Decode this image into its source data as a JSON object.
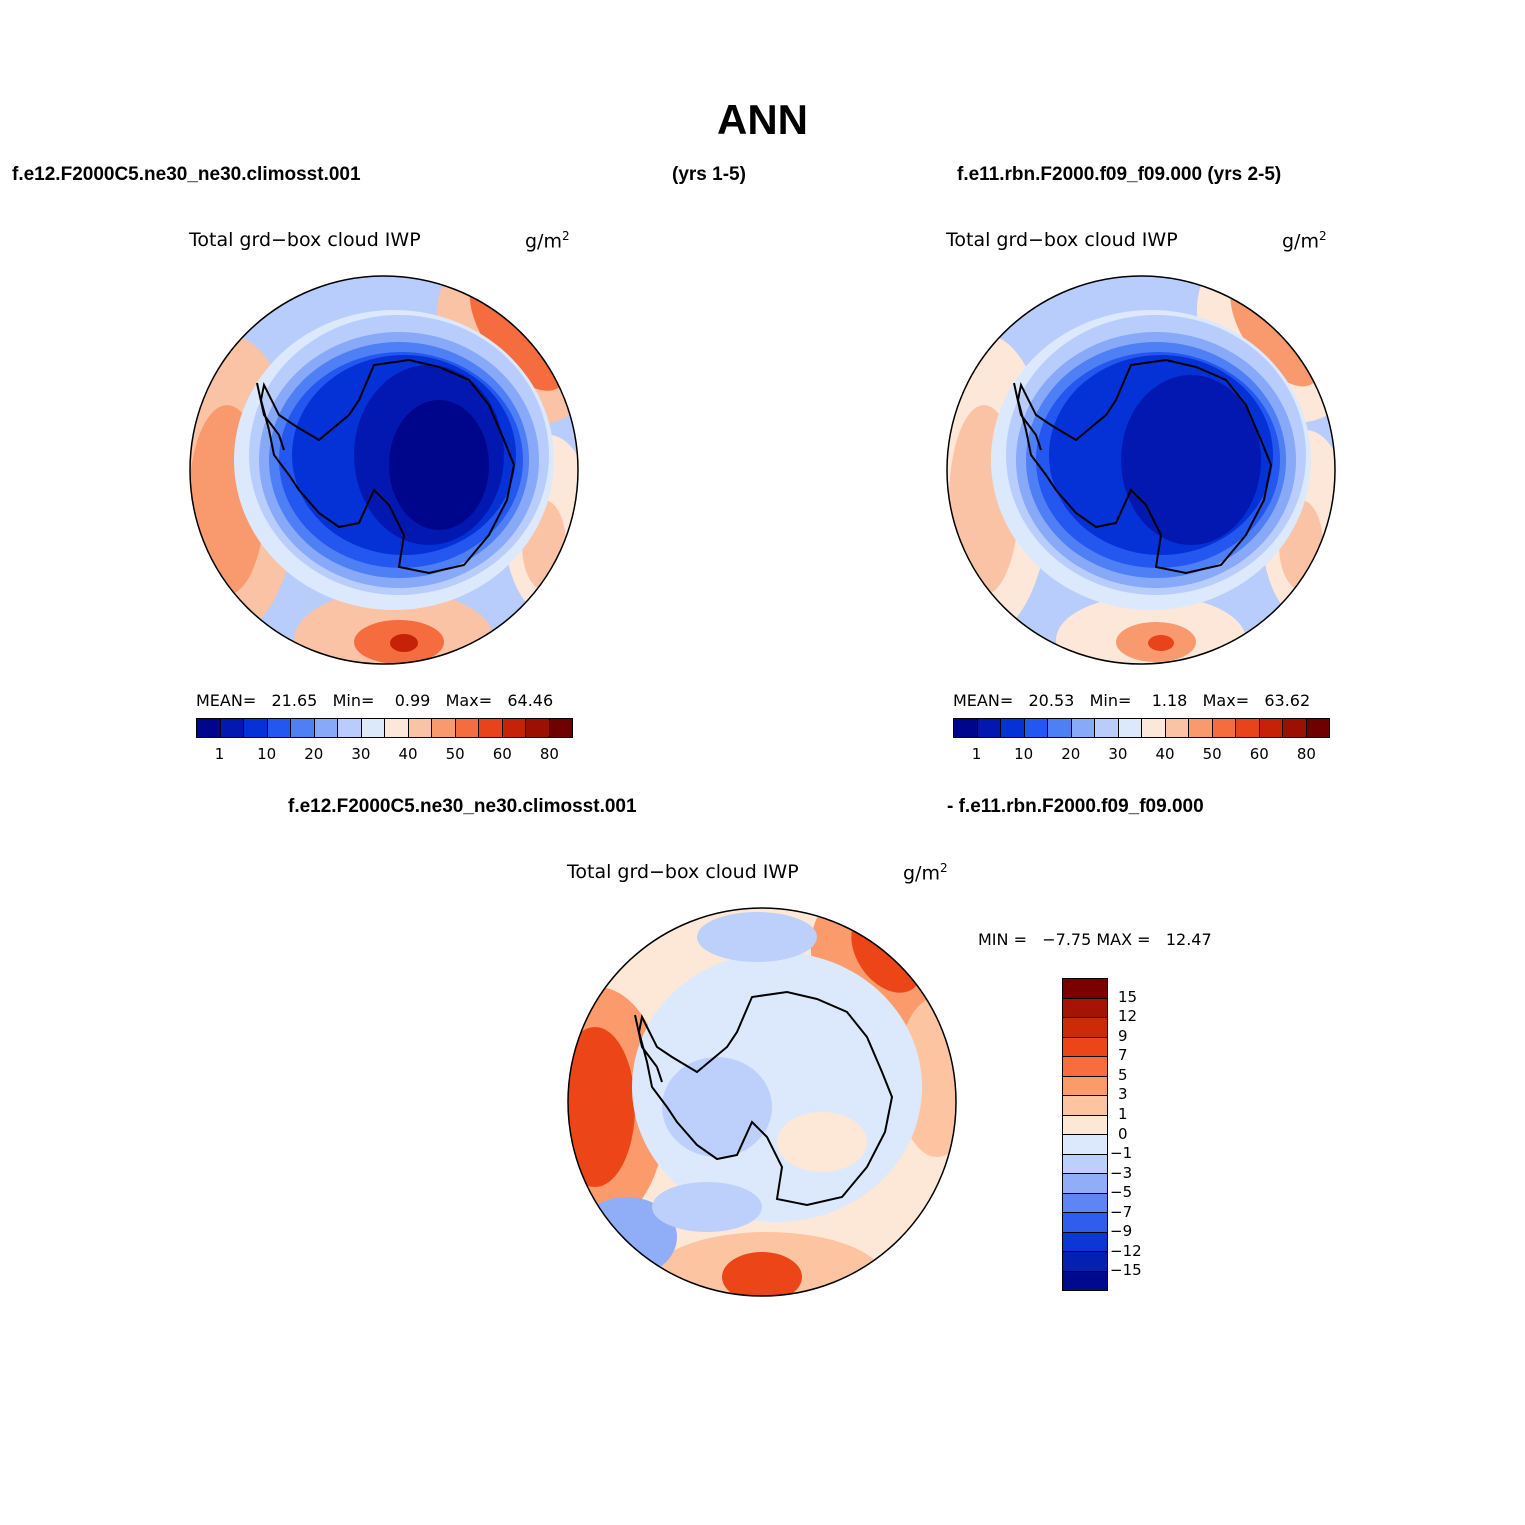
{
  "title": "ANN",
  "header": {
    "case1": "f.e12.F2000C5.ne30_ne30.climosst.001",
    "case1_years": "(yrs 1-5)",
    "case2": "f.e11.rbn.F2000.f09_f09.000 (yrs 2-5)"
  },
  "diff_header": {
    "case1": "f.e12.F2000C5.ne30_ne30.climosst.001",
    "case2": "- f.e11.rbn.F2000.f09_f09.000"
  },
  "variable": "Total grd−box cloud IWP",
  "units_base": "g/m",
  "units_sup": "2",
  "panel1": {
    "mean_label": "MEAN=",
    "mean": "21.65",
    "min_label": "Min=",
    "min": "0.99",
    "max_label": "Max=",
    "max": "64.46"
  },
  "panel2": {
    "mean_label": "MEAN=",
    "mean": "20.53",
    "min_label": "Min=",
    "min": "1.18",
    "max_label": "Max=",
    "max": "63.62"
  },
  "panel3": {
    "min_label": "MIN =",
    "min": "−7.75",
    "max_label": "MAX =",
    "max": "12.47"
  },
  "colorbar_abs": {
    "ticks": [
      "1",
      "10",
      "20",
      "30",
      "40",
      "50",
      "60",
      "80"
    ],
    "colors": [
      "#00068b",
      "#0218b0",
      "#0532d6",
      "#2456f0",
      "#4f7ff5",
      "#88a8f8",
      "#b8cdfb",
      "#dce9fd",
      "#fde7d8",
      "#fbc3a5",
      "#f89a6e",
      "#f56c3f",
      "#e8431b",
      "#c52208",
      "#9c1003",
      "#6e0000"
    ]
  },
  "colorbar_diff": {
    "ticks": [
      "15",
      "12",
      "9",
      "7",
      "5",
      "3",
      "1",
      "0",
      "−1",
      "−3",
      "−5",
      "−7",
      "−9",
      "−12",
      "−15"
    ],
    "colors": [
      "#7a0000",
      "#a51403",
      "#cc2a08",
      "#ec4517",
      "#f86d3d",
      "#fb9b6c",
      "#fdc4a1",
      "#fde7d6",
      "#dce9fd",
      "#bcd0fb",
      "#90adf8",
      "#5d86f4",
      "#2f5ded",
      "#0c37d8",
      "#0420b3",
      "#000a8c"
    ]
  },
  "map_colors": {
    "deep": "#0421b4",
    "navy": "#03168f",
    "blue": "#2456f0",
    "mid": "#4f7ff5",
    "light": "#88a8f8",
    "pale": "#b8cdfb",
    "faint": "#dce9fd",
    "cream": "#fde7d8",
    "peach": "#fbc3a5",
    "salmon": "#f89a6e",
    "orange": "#f56c3f",
    "red": "#e8431b",
    "dark": "#c52208"
  }
}
